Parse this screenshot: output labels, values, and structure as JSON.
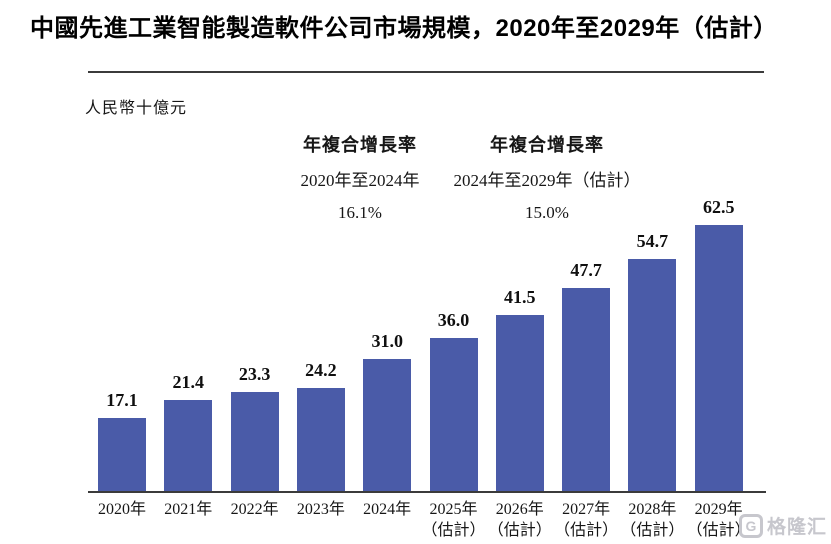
{
  "header": {
    "title": "中國先進工業智能製造軟件公司市場規模，2020年至2029年（估計）"
  },
  "footer": {
    "watermark_brand": "格隆汇",
    "watermark_logo_letter": "G"
  },
  "chart_data": {
    "type": "bar",
    "title": "中國先進工業智能製造軟件公司市場規模，2020年至2029年（估計）",
    "ylabel": "人民幣十億元",
    "xlabel": "",
    "categories": [
      "2020年",
      "2021年",
      "2022年",
      "2023年",
      "2024年",
      "2025年（估計）",
      "2026年（估計）",
      "2027年（估計）",
      "2028年（估計）",
      "2029年（估計）"
    ],
    "values": [
      17.1,
      21.4,
      23.3,
      24.2,
      31.0,
      36.0,
      41.5,
      47.7,
      54.7,
      62.5
    ],
    "bar_color": "#4a5ba8",
    "ylim": [
      0,
      65
    ],
    "grid": false,
    "legend": "none",
    "estimate_note": "（估計）",
    "estimate_start_index": 5,
    "annotations": [
      {
        "label": "年複合增長率",
        "period": "2020年至2024年",
        "value": "16.1%"
      },
      {
        "label": "年複合增長率",
        "period": "2024年至2029年（估計）",
        "value": "15.0%"
      }
    ]
  }
}
